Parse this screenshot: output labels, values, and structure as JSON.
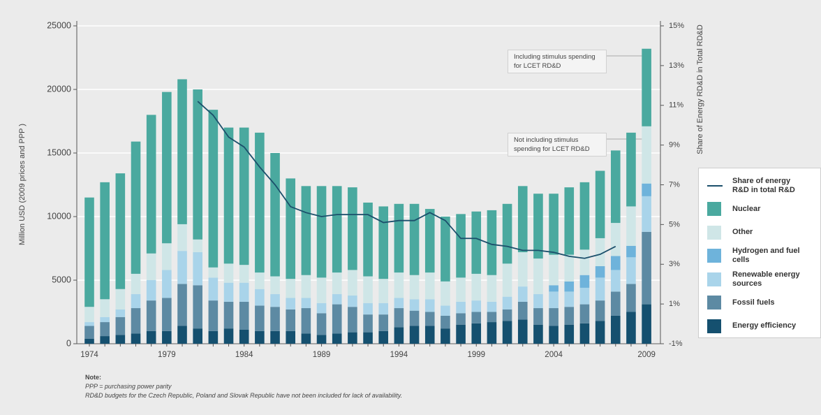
{
  "chart_data": {
    "type": "bar",
    "stacked": true,
    "y_label": "Million USD (2009 prices and PPP )",
    "y2_label": "Share of Energy RD&D in Total RD&D",
    "categories": [
      "1974",
      null,
      null,
      null,
      null,
      "1979",
      null,
      null,
      null,
      null,
      "1984",
      null,
      null,
      null,
      null,
      "1989",
      null,
      null,
      null,
      null,
      "1994",
      null,
      null,
      null,
      null,
      "1999",
      null,
      null,
      null,
      null,
      "2004",
      null,
      null,
      null,
      null,
      null,
      "2009"
    ],
    "ylim": [
      0,
      25000
    ],
    "yticks": [
      0,
      5000,
      10000,
      15000,
      20000,
      25000
    ],
    "y2lim": [
      -1,
      15
    ],
    "y2ticks": [
      {
        "value": -1,
        "label": "-1%"
      },
      {
        "value": 1,
        "label": "1%"
      },
      {
        "value": 3,
        "label": "3%"
      },
      {
        "value": 5,
        "label": "5%"
      },
      {
        "value": 7,
        "label": "7%"
      },
      {
        "value": 9,
        "label": "9%"
      },
      {
        "value": 11,
        "label": "11%"
      },
      {
        "value": 13,
        "label": "13%"
      },
      {
        "value": 15,
        "label": "15%"
      }
    ],
    "grid": true,
    "legend": "right",
    "series": [
      {
        "name": "Energy efficiency",
        "color": "#15506f",
        "values": [
          400,
          600,
          700,
          800,
          1000,
          1000,
          1400,
          1200,
          1000,
          1200,
          1100,
          1000,
          1000,
          1000,
          800,
          700,
          800,
          900,
          900,
          1000,
          1300,
          1400,
          1400,
          1200,
          1500,
          1600,
          1700,
          1800,
          1900,
          1500,
          1400,
          1500,
          1600,
          1800,
          2200,
          2500,
          3100
        ]
      },
      {
        "name": "Fossil fuels",
        "color": "#5d8aa3",
        "values": [
          1000,
          1100,
          1400,
          2000,
          2400,
          2600,
          3300,
          3400,
          2400,
          2100,
          2200,
          2000,
          1900,
          1700,
          2000,
          1700,
          2300,
          2000,
          1400,
          1300,
          1500,
          1200,
          1100,
          1000,
          900,
          900,
          800,
          900,
          1400,
          1300,
          1400,
          1400,
          1500,
          1600,
          1900,
          2200,
          5700
        ]
      },
      {
        "name": "Renewable energy sources",
        "color": "#a9d4ea",
        "values": [
          300,
          400,
          600,
          1100,
          1600,
          2200,
          2600,
          2600,
          1800,
          1500,
          1500,
          1300,
          1000,
          900,
          800,
          800,
          800,
          900,
          900,
          900,
          800,
          900,
          1000,
          800,
          900,
          900,
          800,
          1000,
          1200,
          1100,
          1300,
          1200,
          1300,
          1800,
          1700,
          2100,
          2800
        ]
      },
      {
        "name": "Hydrogen and fuel cells",
        "color": "#6eb3db",
        "values": [
          0,
          0,
          0,
          0,
          0,
          0,
          0,
          0,
          0,
          0,
          0,
          0,
          0,
          0,
          0,
          0,
          0,
          0,
          0,
          0,
          0,
          0,
          0,
          0,
          0,
          0,
          0,
          0,
          0,
          0,
          500,
          800,
          1000,
          900,
          1100,
          900,
          1000
        ]
      },
      {
        "name": "Other",
        "color": "#cfe6e7",
        "values": [
          1200,
          1400,
          1600,
          1600,
          2100,
          2100,
          2100,
          1000,
          800,
          1500,
          1400,
          1300,
          1400,
          1500,
          1800,
          2000,
          1700,
          2000,
          2100,
          1900,
          2000,
          1900,
          2100,
          1900,
          1900,
          2100,
          2100,
          2600,
          2700,
          2800,
          2400,
          2100,
          2000,
          2200,
          2600,
          3100,
          4500
        ]
      },
      {
        "name": "Nuclear",
        "color": "#4aa99f",
        "values": [
          8600,
          9200,
          9100,
          10400,
          10900,
          11900,
          11400,
          11800,
          12400,
          10700,
          10800,
          11000,
          9700,
          7900,
          7000,
          7200,
          6800,
          6500,
          5800,
          5700,
          5400,
          5600,
          5000,
          5100,
          5000,
          4900,
          5100,
          4700,
          5200,
          5100,
          4800,
          5300,
          5300,
          5300,
          5700,
          5800,
          6100
        ]
      },
      {
        "name": "Share of energy R&D in total R&D",
        "type": "line",
        "axis": "y2",
        "color": "#1b4f6b",
        "values": [
          null,
          null,
          null,
          null,
          null,
          null,
          null,
          11.2,
          10.5,
          9.4,
          8.9,
          7.9,
          7.0,
          5.9,
          5.6,
          5.4,
          5.5,
          5.5,
          5.5,
          5.1,
          5.2,
          5.2,
          5.6,
          5.2,
          4.3,
          4.3,
          4.0,
          3.9,
          3.7,
          3.7,
          3.6,
          3.4,
          3.3,
          3.5,
          3.9,
          null,
          null
        ]
      }
    ],
    "annotations": [
      "Including stimulus spending for LCET RD&D",
      "Not including stimulus spending for LCET RD&D"
    ]
  },
  "notes": {
    "title": "Note:",
    "lines": [
      "PPP = purchasing power parity",
      "RD&D budgets for the Czech Republic, Poland and Slovak Republic have not been included for lack of availability."
    ]
  }
}
